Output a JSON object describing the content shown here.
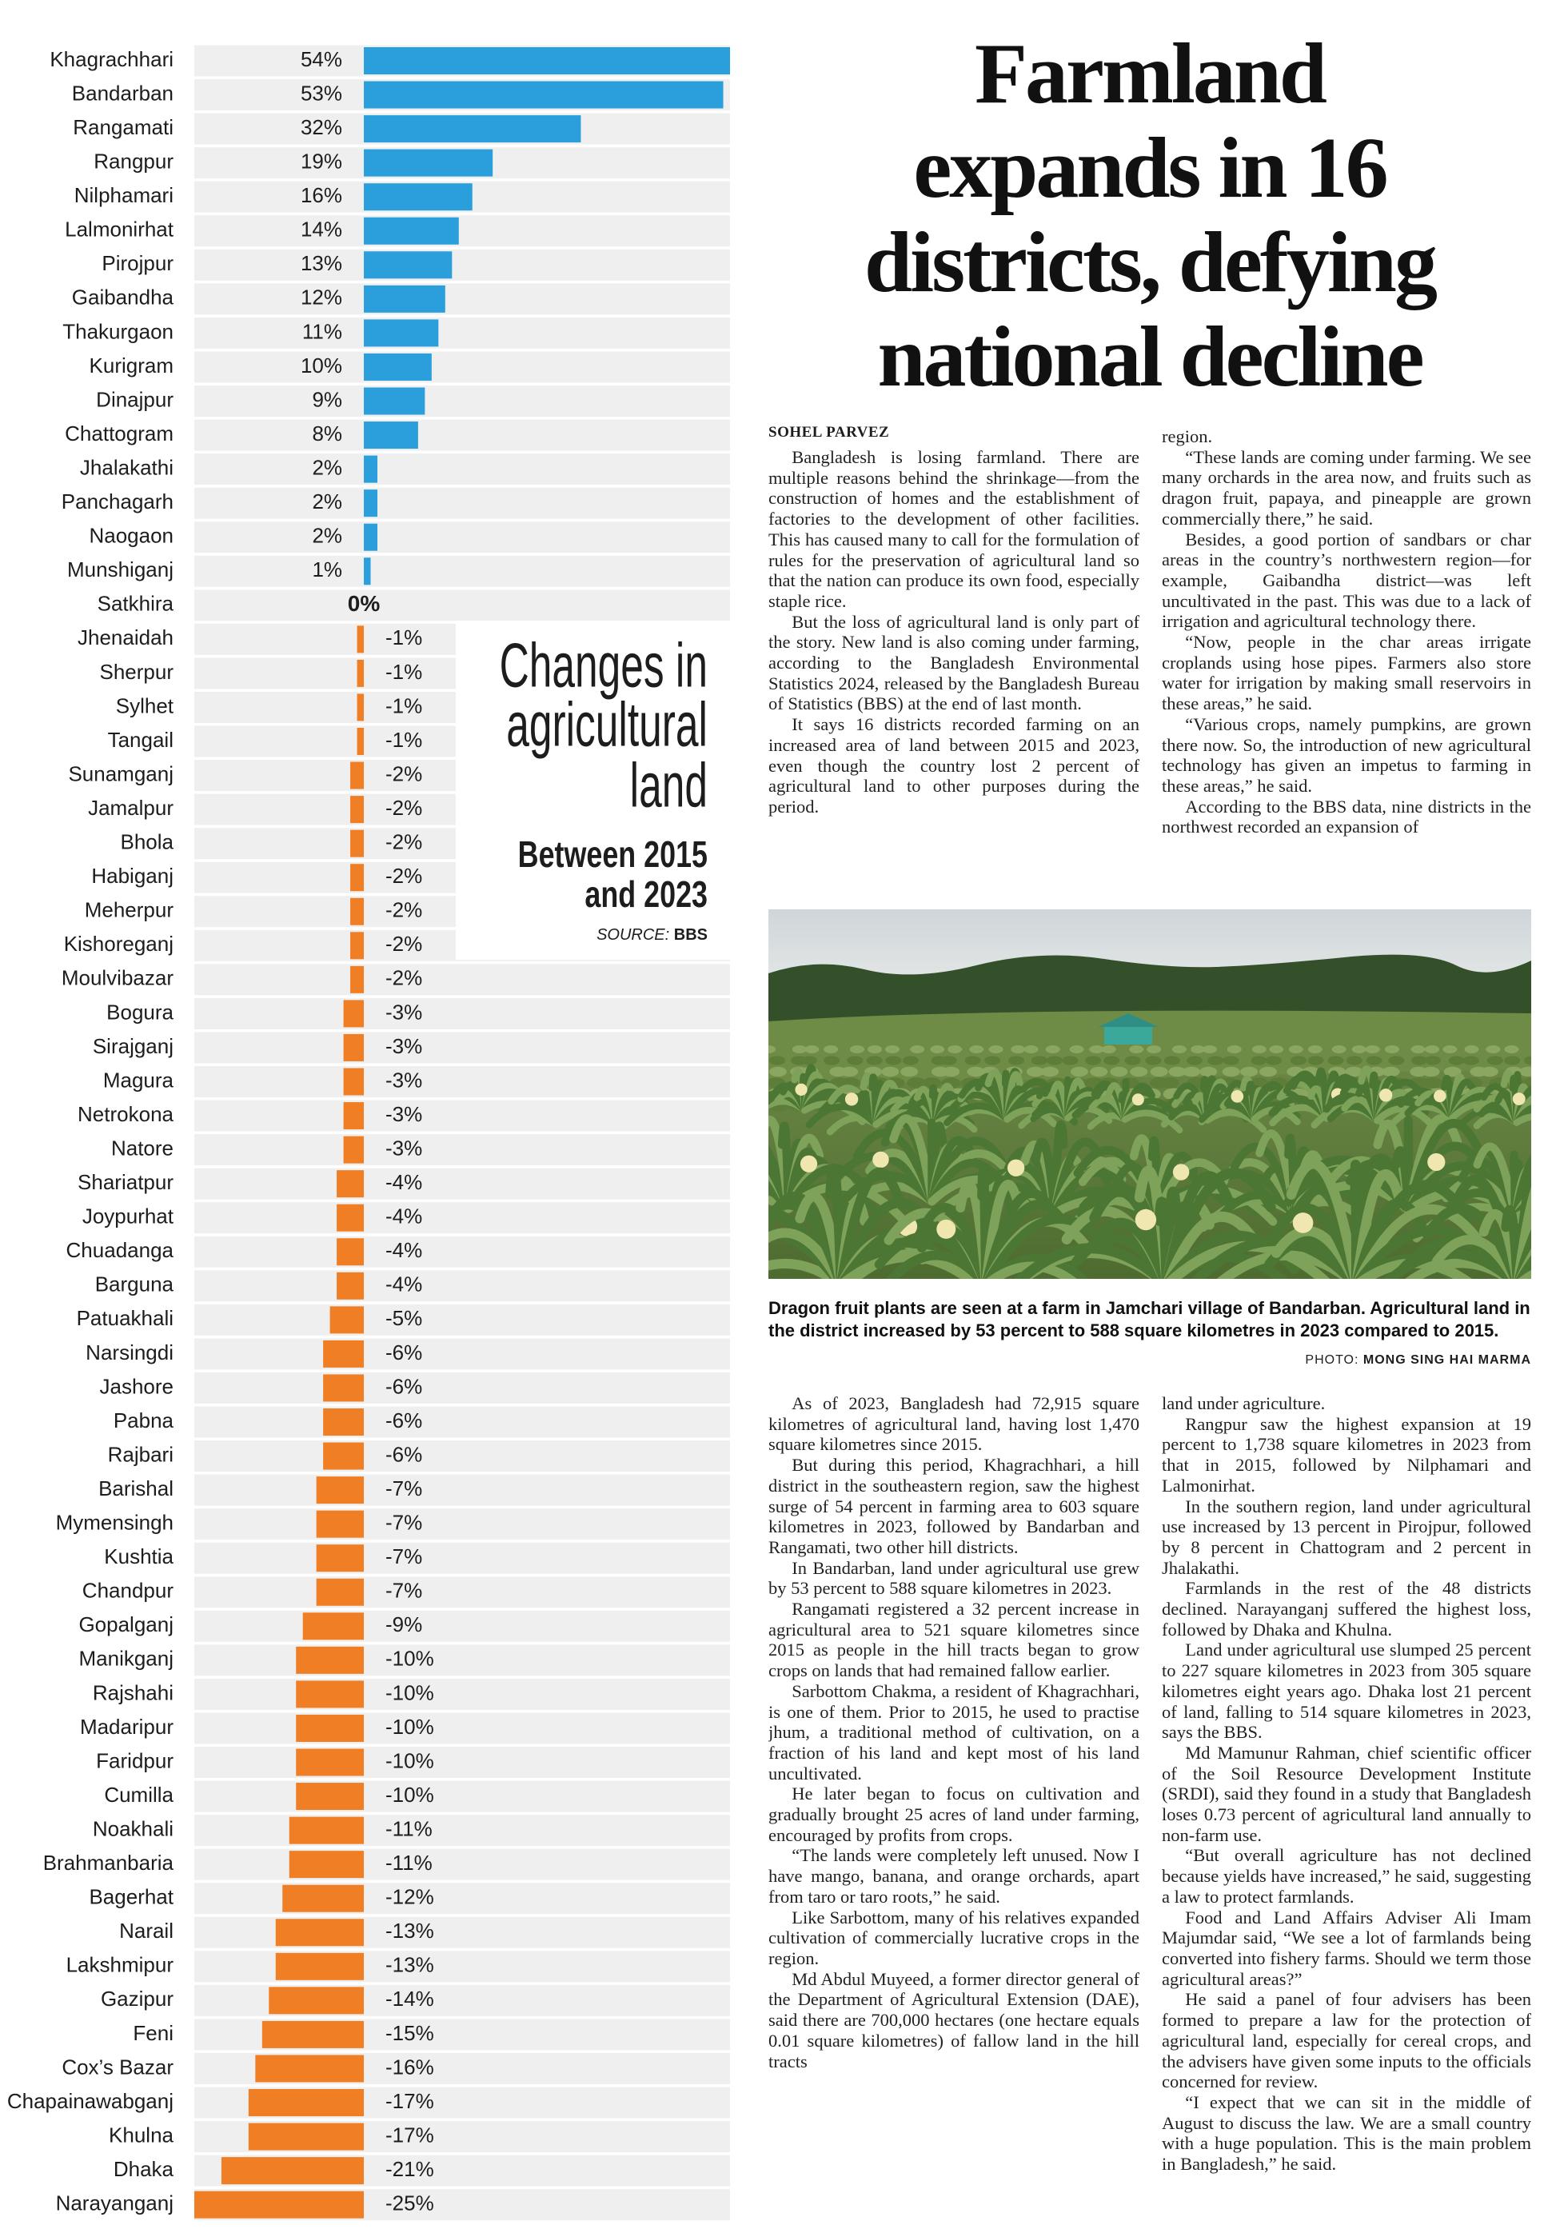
{
  "chart_data": {
    "type": "bar",
    "orientation": "horizontal",
    "title_lines": [
      "Changes in",
      "agricultural",
      "land"
    ],
    "subtitle_lines": [
      "Between 2015",
      "and 2023"
    ],
    "source_label": "SOURCE:",
    "source": "BBS",
    "categories": [
      "Khagrachhari",
      "Bandarban",
      "Rangamati",
      "Rangpur",
      "Nilphamari",
      "Lalmonirhat",
      "Pirojpur",
      "Gaibandha",
      "Thakurgaon",
      "Kurigram",
      "Dinajpur",
      "Chattogram",
      "Jhalakathi",
      "Panchagarh",
      "Naogaon",
      "Munshiganj",
      "Satkhira",
      "Jhenaidah",
      "Sherpur",
      "Sylhet",
      "Tangail",
      "Sunamganj",
      "Jamalpur",
      "Bhola",
      "Habiganj",
      "Meherpur",
      "Kishoreganj",
      "Moulvibazar",
      "Bogura",
      "Sirajganj",
      "Magura",
      "Netrokona",
      "Natore",
      "Shariatpur",
      "Joypurhat",
      "Chuadanga",
      "Barguna",
      "Patuakhali",
      "Narsingdi",
      "Jashore",
      "Pabna",
      "Rajbari",
      "Barishal",
      "Mymensingh",
      "Kushtia",
      "Chandpur",
      "Gopalganj",
      "Manikganj",
      "Rajshahi",
      "Madaripur",
      "Faridpur",
      "Cumilla",
      "Noakhali",
      "Brahmanbaria",
      "Bagerhat",
      "Narail",
      "Lakshmipur",
      "Gazipur",
      "Feni",
      "Cox’s Bazar",
      "Chapainawabganj",
      "Khulna",
      "Dhaka",
      "Narayanganj"
    ],
    "values": [
      54,
      53,
      32,
      19,
      16,
      14,
      13,
      12,
      11,
      10,
      9,
      8,
      2,
      2,
      2,
      1,
      0,
      -1,
      -1,
      -1,
      -1,
      -2,
      -2,
      -2,
      -2,
      -2,
      -2,
      -2,
      -3,
      -3,
      -3,
      -3,
      -3,
      -4,
      -4,
      -4,
      -4,
      -5,
      -6,
      -6,
      -6,
      -6,
      -7,
      -7,
      -7,
      -7,
      -9,
      -10,
      -10,
      -10,
      -10,
      -10,
      -11,
      -11,
      -12,
      -13,
      -13,
      -14,
      -15,
      -16,
      -17,
      -17,
      -21,
      -25
    ],
    "value_labels": [
      "54%",
      "53%",
      "32%",
      "19%",
      "16%",
      "14%",
      "13%",
      "12%",
      "11%",
      "10%",
      "9%",
      "8%",
      "2%",
      "2%",
      "2%",
      "1%",
      "0%",
      "-1%",
      "-1%",
      "-1%",
      "-1%",
      "-2%",
      "-2%",
      "-2%",
      "-2%",
      "-2%",
      "-2%",
      "-2%",
      "-3%",
      "-3%",
      "-3%",
      "-3%",
      "-3%",
      "-4%",
      "-4%",
      "-4%",
      "-4%",
      "-5%",
      "-6%",
      "-6%",
      "-6%",
      "-6%",
      "-7%",
      "-7%",
      "-7%",
      "-7%",
      "-9%",
      "-10%",
      "-10%",
      "-10%",
      "-10%",
      "-10%",
      "-11%",
      "-11%",
      "-12%",
      "-13%",
      "-13%",
      "-14%",
      "-15%",
      "-16%",
      "-17%",
      "-17%",
      "-21%",
      "-25%"
    ],
    "xlim": [
      -25,
      54
    ],
    "colors": {
      "positive": "#2a9fdc",
      "negative": "#f07e24"
    }
  },
  "article": {
    "headline_lines": [
      "Farmland",
      "expands in 16",
      "districts, defying",
      "national decline"
    ],
    "byline": "SOHEL PARVEZ",
    "top_columns": [
      [
        "Bangladesh is losing farmland. There are multiple reasons behind the shrinkage—from the construction of homes and the establishment of factories to the development of other facilities. This has caused many to call for the formulation of rules for the preservation of agricultural land so that the nation can produce its own food, especially staple rice.",
        "But the loss of agricultural land is only part of the story. New land is also coming under farming, according to the Bangladesh Environmental Statistics 2024, released by the Bangladesh Bureau of Statistics (BBS) at the end of last month.",
        "It says 16 districts recorded farming on an increased area of land between 2015 and 2023, even though the country lost 2 percent of agricultural land to other purposes during the period."
      ],
      [
        "region.",
        "“These lands are coming under farming. We see many orchards in the area now, and fruits such as dragon fruit, papaya, and pineapple are grown commercially there,” he said.",
        "Besides, a good portion of sandbars or char areas in the country’s northwestern region—for example, Gaibandha district—was left uncultivated in the past. This was due to a lack of irrigation and agricultural technology there.",
        "“Now, people in the char areas irrigate croplands using hose pipes. Farmers also store water for irrigation by making small reservoirs in these areas,” he said.",
        "“Various crops, namely pumpkins, are grown there now. So, the introduction of new agricultural technology has given an impetus to farming in these areas,” he said.",
        "According to the BBS data, nine districts in the northwest recorded an expansion of"
      ]
    ],
    "photo_caption": "Dragon fruit plants are seen at a farm in Jamchari village of Bandarban. Agricultural land in the district increased by 53 percent to 588 square kilometres in 2023 compared to 2015.",
    "photo_credit_label": "PHOTO:",
    "photo_credit": "MONG SING HAI MARMA",
    "bottom_columns": [
      [
        "As of 2023, Bangladesh had 72,915 square kilometres of agricultural land, having lost 1,470 square kilometres since 2015.",
        "But during this period, Khagrachhari, a hill district in the southeastern region, saw the highest surge of 54 percent in farming area to 603 square kilometres in 2023, followed by Bandarban and Rangamati, two other hill districts.",
        "In Bandarban, land under agricultural use grew by 53 percent to 588 square kilometres in 2023.",
        "Rangamati registered a 32 percent increase in agricultural area to 521 square kilometres since 2015 as people in the hill tracts began to grow crops on lands that had remained fallow earlier.",
        "Sarbottom Chakma, a resident of Khagrachhari, is one of them. Prior to 2015, he used to practise jhum, a traditional method of cultivation, on a fraction of his land and kept most of his land uncultivated.",
        "He later began to focus on cultivation and gradually brought 25 acres of land under farming, encouraged by profits from crops.",
        "“The lands were completely left unused. Now I have mango, banana, and orange orchards, apart from taro or taro roots,” he said.",
        "Like Sarbottom, many of his relatives expanded cultivation of commercially lucrative crops in the region.",
        "Md Abdul Muyeed, a former director general of the Department of Agricultural Extension (DAE), said there are 700,000 hectares (one hectare equals 0.01 square kilometres) of fallow land in the hill tracts"
      ],
      [
        "land under agriculture.",
        "Rangpur saw the highest expansion at 19 percent to 1,738 square kilometres in 2023 from that in 2015, followed by Nilphamari and Lalmonirhat.",
        "In the southern region, land under agricultural use increased by 13 percent in Pirojpur, followed by 8 percent in Chattogram and 2 percent in Jhalakathi.",
        "Farmlands in the rest of the 48 districts declined. Narayanganj suffered the highest loss, followed by Dhaka and Khulna.",
        "Land under agricultural use slumped 25 percent to 227 square kilometres in 2023 from 305 square kilometres eight years ago. Dhaka lost 21 percent of land, falling to 514 square kilometres in 2023, says the BBS.",
        "Md Mamunur Rahman, chief scientific officer of the Soil Resource Development Institute (SRDI), said they found in a study that Bangladesh loses 0.73 percent of agricultural land annually to non-farm use.",
        "“But overall agriculture has not declined because yields have increased,” he said, suggesting a law to protect farmlands.",
        "Food and Land Affairs Adviser Ali Imam Majumdar said, “We see a lot of farmlands being converted into fishery farms. Should we term those agricultural areas?”",
        "He said a panel of four advisers has been formed to prepare a law for the protection of agricultural land, especially for cereal crops, and the advisers have given some inputs to the officials concerned for review.",
        "“I expect that we can sit in the middle of August to discuss the law. We are a small country with a huge population. This is the main problem in Bangladesh,” he said."
      ]
    ]
  }
}
